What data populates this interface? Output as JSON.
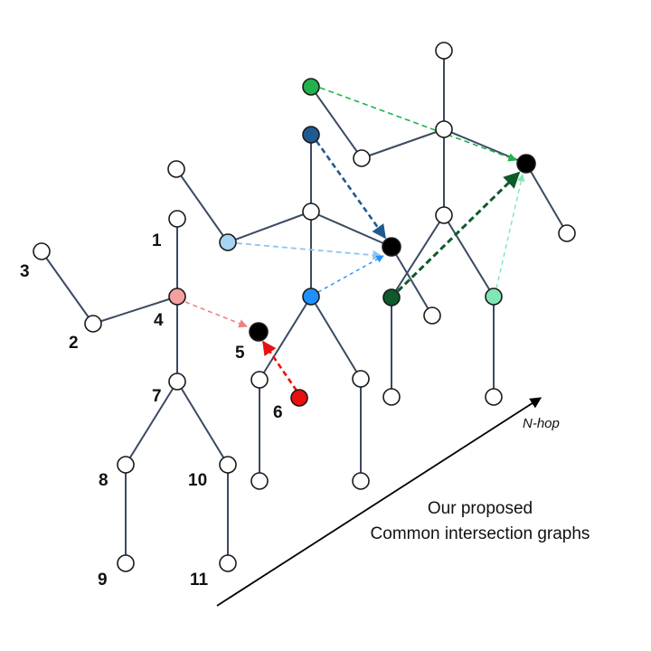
{
  "node_labels": [
    "1",
    "2",
    "3",
    "4",
    "5",
    "6",
    "7",
    "8",
    "9",
    "10",
    "11"
  ],
  "hop_label": "N-hop",
  "caption": [
    "Our proposed",
    "Common intersection graphs"
  ],
  "colors": {
    "edge": "#3b4a63",
    "pink": "#f4a0a0",
    "red": "#e81010",
    "light_blue": "#a8d4f4",
    "blue": "#1e90ff",
    "dark_blue": "#1f5a91",
    "green": "#22b14c",
    "dark_green": "#0f5a2a",
    "mint": "#7fe6b4",
    "black": "#000000",
    "white": "#ffffff"
  }
}
